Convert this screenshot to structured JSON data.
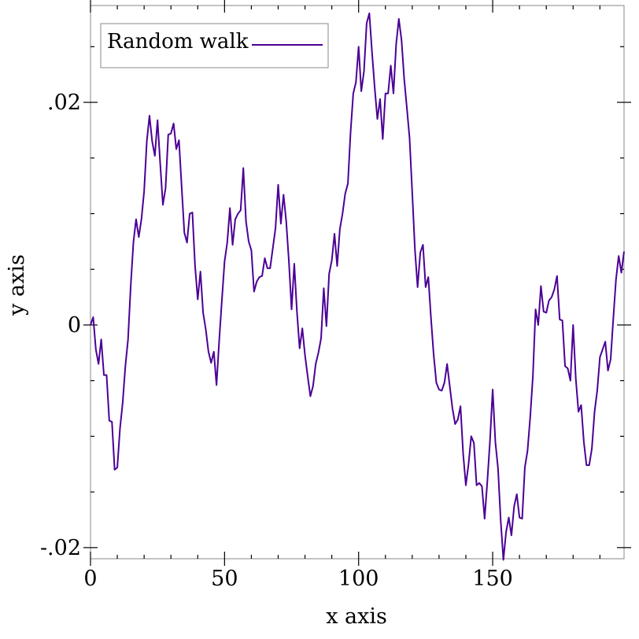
{
  "chart_data": {
    "type": "line",
    "title": "",
    "xlabel": "x axis",
    "ylabel": "y axis",
    "xlim": [
      0,
      199
    ],
    "ylim": [
      -0.021,
      0.0287
    ],
    "x_ticks": [
      0,
      50,
      100,
      150
    ],
    "x_tick_labels": [
      "0",
      "50",
      "100",
      "150"
    ],
    "y_ticks": [
      -0.02,
      0,
      0.02
    ],
    "y_tick_labels": [
      "-.02",
      "0",
      ".02"
    ],
    "grid": false,
    "legend_position": "top-left",
    "series": [
      {
        "name": "Random walk",
        "color": "#4b0096",
        "x": [
          0,
          1,
          2,
          3,
          4,
          5,
          6,
          7,
          8,
          9,
          10,
          11,
          12,
          13,
          14,
          15,
          16,
          17,
          18,
          19,
          20,
          21,
          22,
          23,
          24,
          25,
          26,
          27,
          28,
          29,
          30,
          31,
          32,
          33,
          34,
          35,
          36,
          37,
          38,
          39,
          40,
          41,
          42,
          43,
          44,
          45,
          46,
          47,
          48,
          49,
          50,
          51,
          52,
          53,
          54,
          55,
          56,
          57,
          58,
          59,
          60,
          61,
          62,
          63,
          64,
          65,
          66,
          67,
          68,
          69,
          70,
          71,
          72,
          73,
          74,
          75,
          76,
          77,
          78,
          79,
          80,
          81,
          82,
          83,
          84,
          85,
          86,
          87,
          88,
          89,
          90,
          91,
          92,
          93,
          94,
          95,
          96,
          97,
          98,
          99,
          100,
          101,
          102,
          103,
          104,
          105,
          106,
          107,
          108,
          109,
          110,
          111,
          112,
          113,
          114,
          115,
          116,
          117,
          118,
          119,
          120,
          121,
          122,
          123,
          124,
          125,
          126,
          127,
          128,
          129,
          130,
          131,
          132,
          133,
          134,
          135,
          136,
          137,
          138,
          139,
          140,
          141,
          142,
          143,
          144,
          145,
          146,
          147,
          148,
          149,
          150,
          151,
          152,
          153,
          154,
          155,
          156,
          157,
          158,
          159,
          160,
          161,
          162,
          163,
          164,
          165,
          166,
          167,
          168,
          169,
          170,
          171,
          172,
          173,
          174,
          175,
          176,
          177,
          178,
          179,
          180,
          181,
          182,
          183,
          184,
          185,
          186,
          187,
          188,
          189,
          190,
          191,
          192,
          193,
          194,
          195,
          196,
          197,
          198,
          199
        ],
        "values": [
          0.0,
          0.0007,
          -0.0022,
          -0.0035,
          -0.0013,
          -0.0045,
          -0.0045,
          -0.0086,
          -0.0087,
          -0.013,
          -0.0128,
          -0.0093,
          -0.007,
          -0.0037,
          -0.0013,
          0.0035,
          0.0074,
          0.0095,
          0.0079,
          0.0095,
          0.012,
          0.0165,
          0.0188,
          0.0165,
          0.0152,
          0.0184,
          0.0145,
          0.0108,
          0.0123,
          0.0171,
          0.0172,
          0.0181,
          0.0158,
          0.0166,
          0.0124,
          0.0083,
          0.0074,
          0.01,
          0.0101,
          0.0053,
          0.0023,
          0.0048,
          0.0011,
          -0.0004,
          -0.0024,
          -0.0034,
          -0.0024,
          -0.0054,
          -0.0014,
          0.0022,
          0.0057,
          0.0074,
          0.0105,
          0.0072,
          0.0095,
          0.01,
          0.0103,
          0.0141,
          0.0093,
          0.0075,
          0.0067,
          0.003,
          0.0039,
          0.0043,
          0.0044,
          0.006,
          0.0051,
          0.0051,
          0.0069,
          0.0087,
          0.0126,
          0.0091,
          0.0117,
          0.0093,
          0.0057,
          0.0014,
          0.0055,
          0.0012,
          -0.0021,
          -0.0003,
          -0.0027,
          -0.0046,
          -0.0064,
          -0.0055,
          -0.0035,
          -0.0025,
          -0.0012,
          0.0033,
          -0.0001,
          0.0046,
          0.0058,
          0.0082,
          0.0053,
          0.0086,
          0.01,
          0.0118,
          0.0127,
          0.0173,
          0.0208,
          0.0218,
          0.025,
          0.021,
          0.0228,
          0.0271,
          0.028,
          0.0245,
          0.0213,
          0.0185,
          0.0203,
          0.0167,
          0.0208,
          0.0208,
          0.0233,
          0.0208,
          0.0252,
          0.0275,
          0.0256,
          0.0221,
          0.0195,
          0.0168,
          0.0119,
          0.0068,
          0.0034,
          0.0065,
          0.0072,
          0.0034,
          0.0043,
          0.0006,
          -0.0027,
          -0.0052,
          -0.0058,
          -0.0059,
          -0.0052,
          -0.0035,
          -0.0055,
          -0.0075,
          -0.0089,
          -0.0085,
          -0.0073,
          -0.0116,
          -0.0144,
          -0.0125,
          -0.01,
          -0.0106,
          -0.0144,
          -0.0142,
          -0.0145,
          -0.0174,
          -0.0141,
          -0.0104,
          -0.0058,
          -0.0105,
          -0.0129,
          -0.0176,
          -0.0211,
          -0.0186,
          -0.0173,
          -0.0189,
          -0.0163,
          -0.0152,
          -0.0173,
          -0.0174,
          -0.0128,
          -0.0113,
          -0.0083,
          -0.0046,
          0.0014,
          0.0,
          0.0035,
          0.0012,
          0.0011,
          0.0022,
          0.0025,
          0.0032,
          0.0044,
          0.0005,
          0.0004,
          -0.0037,
          -0.0039,
          -0.005,
          0.0,
          -0.0048,
          -0.0078,
          -0.0072,
          -0.0105,
          -0.0126,
          -0.0126,
          -0.0111,
          -0.0078,
          -0.0059,
          -0.0029,
          -0.0022,
          -0.0015,
          -0.0041,
          -0.0031,
          0.0006,
          0.0041,
          0.0062,
          0.0047,
          0.0066
        ]
      }
    ]
  }
}
